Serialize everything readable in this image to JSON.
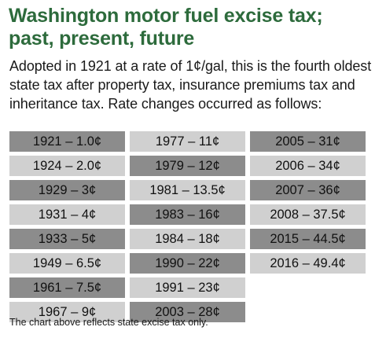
{
  "title_line1": "Washington motor fuel excise tax;",
  "title_line2": "past, present, future",
  "intro": "Adopted in 1921 at a rate of 1¢/gal, this is the fourth oldest state tax after property tax, insurance premiums tax and inheritance tax. Rate changes occurred as follows:",
  "columns": [
    [
      {
        "label": "1921 – 1.0¢",
        "shade": "dark"
      },
      {
        "label": "1924 – 2.0¢",
        "shade": "light"
      },
      {
        "label": "1929 – 3¢",
        "shade": "dark"
      },
      {
        "label": "1931 – 4¢",
        "shade": "light"
      },
      {
        "label": "1933 – 5¢",
        "shade": "dark"
      },
      {
        "label": "1949 – 6.5¢",
        "shade": "light"
      },
      {
        "label": "1961 – 7.5¢",
        "shade": "dark"
      },
      {
        "label": "1967 – 9¢",
        "shade": "light"
      }
    ],
    [
      {
        "label": "1977 – 11¢",
        "shade": "light"
      },
      {
        "label": "1979 – 12¢",
        "shade": "dark"
      },
      {
        "label": "1981 – 13.5¢",
        "shade": "light"
      },
      {
        "label": "1983 – 16¢",
        "shade": "dark"
      },
      {
        "label": "1984 – 18¢",
        "shade": "light"
      },
      {
        "label": "1990 – 22¢",
        "shade": "dark"
      },
      {
        "label": "1991 – 23¢",
        "shade": "light"
      },
      {
        "label": "2003 – 28¢",
        "shade": "dark"
      }
    ],
    [
      {
        "label": "2005 – 31¢",
        "shade": "dark"
      },
      {
        "label": "2006 – 34¢",
        "shade": "light"
      },
      {
        "label": "2007 – 36¢",
        "shade": "dark"
      },
      {
        "label": "2008 – 37.5¢",
        "shade": "light"
      },
      {
        "label": "2015 – 44.5¢",
        "shade": "dark"
      },
      {
        "label": "2016 – 49.4¢",
        "shade": "light"
      }
    ]
  ],
  "footnote": "The chart above reflects state excise tax only."
}
